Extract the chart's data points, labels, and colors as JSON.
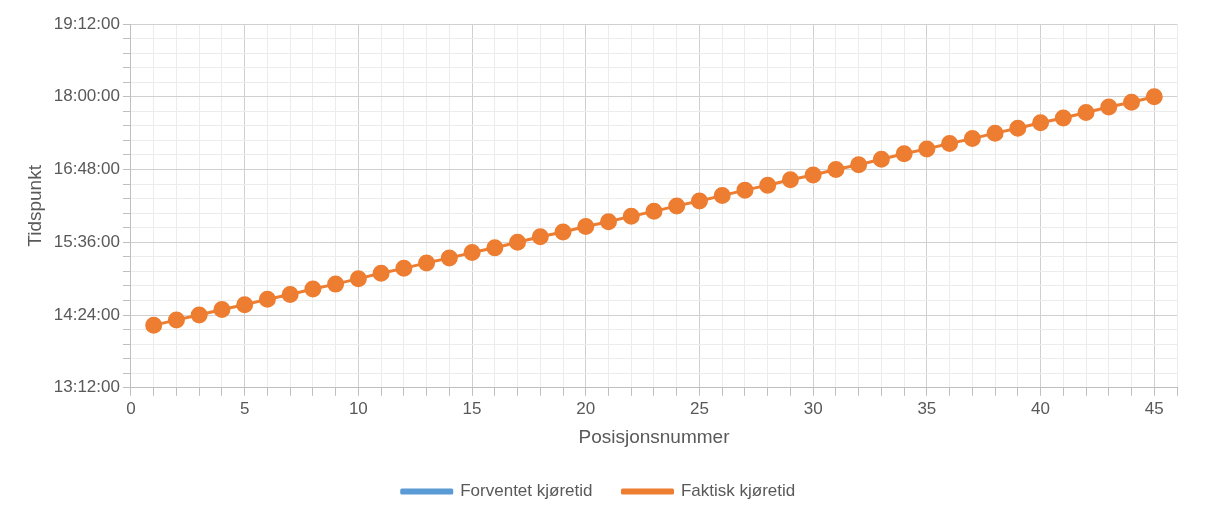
{
  "chart_data": {
    "type": "line",
    "xlabel": "Posisjonsnummer",
    "ylabel": "Tidspunkt",
    "x": [
      1,
      2,
      3,
      4,
      5,
      6,
      7,
      8,
      9,
      10,
      11,
      12,
      13,
      14,
      15,
      16,
      17,
      18,
      19,
      20,
      21,
      22,
      23,
      24,
      25,
      26,
      27,
      28,
      29,
      30,
      31,
      32,
      33,
      34,
      35,
      36,
      37,
      38,
      39,
      40,
      41,
      42,
      43,
      44,
      45
    ],
    "series": [
      {
        "name": "Forventet kjøretid",
        "color": "#5b9bd5",
        "values": [
          null,
          null,
          null,
          null,
          null,
          null,
          null,
          null,
          null,
          null,
          null,
          null,
          null,
          null,
          null,
          null,
          null,
          null,
          null,
          null,
          null,
          null,
          null,
          null,
          null,
          null,
          null,
          null,
          null,
          null,
          null,
          null,
          null,
          null,
          null,
          null,
          null,
          null,
          null,
          null,
          null,
          null,
          null,
          null,
          null
        ]
      },
      {
        "name": "Faktisk kjøretid",
        "color": "#ed7d31",
        "values": [
          14.23,
          14.32,
          14.4,
          14.49,
          14.57,
          14.66,
          14.74,
          14.83,
          14.91,
          15.0,
          15.09,
          15.17,
          15.26,
          15.34,
          15.43,
          15.51,
          15.6,
          15.69,
          15.77,
          15.86,
          15.94,
          16.03,
          16.11,
          16.2,
          16.28,
          16.37,
          16.46,
          16.54,
          16.63,
          16.71,
          16.8,
          16.88,
          16.97,
          17.06,
          17.14,
          17.23,
          17.31,
          17.4,
          17.48,
          17.57,
          17.65,
          17.74,
          17.83,
          17.91,
          18.0
        ]
      }
    ],
    "xlim": [
      0,
      46
    ],
    "xticks": [
      0,
      {
        "value": 1,
        "label": null
      },
      {
        "value": 2,
        "label": null
      },
      {
        "value": 3,
        "label": null
      },
      {
        "value": 4,
        "label": null
      },
      5,
      {
        "value": 6,
        "label": null
      },
      {
        "value": 7,
        "label": null
      },
      {
        "value": 8,
        "label": null
      },
      {
        "value": 9,
        "label": null
      },
      10,
      {
        "value": 11,
        "label": null
      },
      {
        "value": 12,
        "label": null
      },
      {
        "value": 13,
        "label": null
      },
      {
        "value": 14,
        "label": null
      },
      15,
      {
        "value": 16,
        "label": null
      },
      {
        "value": 17,
        "label": null
      },
      {
        "value": 18,
        "label": null
      },
      {
        "value": 19,
        "label": null
      },
      20,
      {
        "value": 21,
        "label": null
      },
      {
        "value": 22,
        "label": null
      },
      {
        "value": 23,
        "label": null
      },
      {
        "value": 24,
        "label": null
      },
      25,
      {
        "value": 26,
        "label": null
      },
      {
        "value": 27,
        "label": null
      },
      {
        "value": 28,
        "label": null
      },
      {
        "value": 29,
        "label": null
      },
      30,
      {
        "value": 31,
        "label": null
      },
      {
        "value": 32,
        "label": null
      },
      {
        "value": 33,
        "label": null
      },
      {
        "value": 34,
        "label": null
      },
      35,
      {
        "value": 36,
        "label": null
      },
      {
        "value": 37,
        "label": null
      },
      {
        "value": 38,
        "label": null
      },
      {
        "value": 39,
        "label": null
      },
      40,
      {
        "value": 41,
        "label": null
      },
      {
        "value": 42,
        "label": null
      },
      {
        "value": 43,
        "label": null
      },
      {
        "value": 44,
        "label": null
      },
      45,
      {
        "value": 46,
        "label": null
      }
    ],
    "ylim": [
      13.2,
      19.2
    ],
    "yticks": [
      {
        "value": 13.2,
        "label": "13:12:00"
      },
      {
        "value": 13.44,
        "label": null
      },
      {
        "value": 13.68,
        "label": null
      },
      {
        "value": 13.92,
        "label": null
      },
      {
        "value": 14.16,
        "label": null
      },
      {
        "value": 14.4,
        "label": "14:24:00"
      },
      {
        "value": 14.64,
        "label": null
      },
      {
        "value": 14.88,
        "label": null
      },
      {
        "value": 15.12,
        "label": null
      },
      {
        "value": 15.36,
        "label": null
      },
      {
        "value": 15.6,
        "label": "15:36:00"
      },
      {
        "value": 15.84,
        "label": null
      },
      {
        "value": 16.08,
        "label": null
      },
      {
        "value": 16.32,
        "label": null
      },
      {
        "value": 16.56,
        "label": null
      },
      {
        "value": 16.8,
        "label": "16:48:00"
      },
      {
        "value": 17.04,
        "label": null
      },
      {
        "value": 17.28,
        "label": null
      },
      {
        "value": 17.52,
        "label": null
      },
      {
        "value": 17.76,
        "label": null
      },
      {
        "value": 18.0,
        "label": "18:00:00"
      },
      {
        "value": 18.24,
        "label": null
      },
      {
        "value": 18.48,
        "label": null
      },
      {
        "value": 18.72,
        "label": null
      },
      {
        "value": 18.96,
        "label": null
      },
      {
        "value": 19.2,
        "label": "19:12:00"
      }
    ],
    "grid": true,
    "legend": "bottom",
    "marker": "circle",
    "line_style": "solid"
  }
}
